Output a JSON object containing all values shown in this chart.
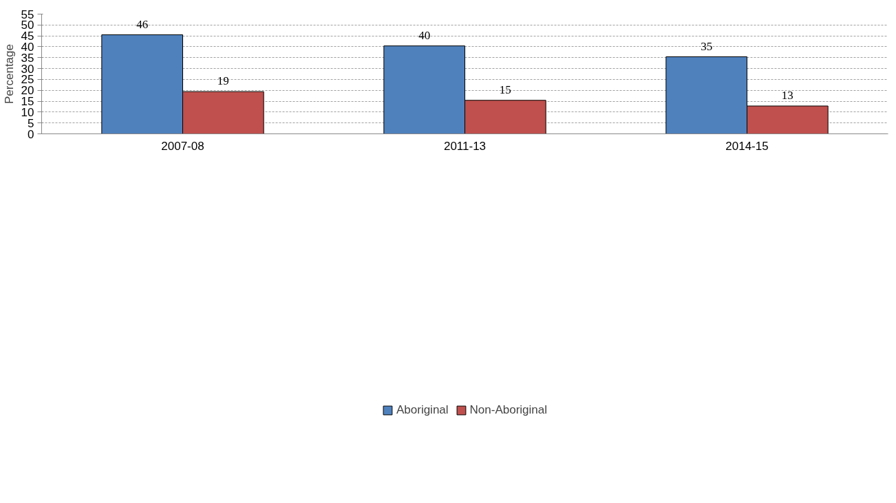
{
  "chart_data": {
    "type": "bar",
    "ylabel": "Percentage",
    "categories": [
      "2007-08",
      "2011-13",
      "2014-15"
    ],
    "series": [
      {
        "name": "Aboriginal",
        "color": "#4f81bd",
        "values": [
          45.5,
          40.4,
          35.4
        ],
        "value_labels": [
          "46",
          "40",
          "35"
        ]
      },
      {
        "name": "Non-Aboriginal",
        "color": "#c0504d",
        "values": [
          19.4,
          15.4,
          12.8
        ],
        "value_labels": [
          "19",
          "15",
          "13"
        ]
      }
    ],
    "ylim": [
      0,
      55
    ],
    "yticks": [
      0,
      5,
      10,
      15,
      20,
      25,
      30,
      35,
      40,
      45,
      50,
      55
    ],
    "grid": "y",
    "legend": "bottom"
  }
}
